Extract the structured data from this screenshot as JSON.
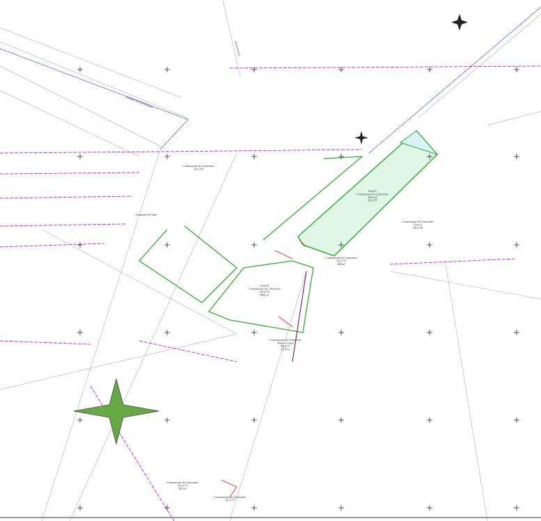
{
  "labels": [
    {
      "lines": [
        "Limite de Commune"
      ]
    },
    {
      "lines": [
        "Zone A",
        "Communauté de Communes",
        "5422 m²",
        "ZE n°97"
      ]
    },
    {
      "lines": [
        "Communauté de Communes",
        "Zone B",
        "ZE n°98"
      ]
    },
    {
      "lines": [
        "Zone B",
        "Communauté de Communes",
        "ZE n°76",
        "4880 m²"
      ]
    },
    {
      "lines": [
        "Communauté de Communes",
        "Maître Lesieur",
        "ZE n°77",
        "2154 m²"
      ]
    },
    {
      "lines": [
        "Communauté de Communes",
        "ZE n°79",
        "268 m²"
      ]
    },
    {
      "lines": [
        "Communauté de Communes",
        "ZE n°74",
        "287 m²"
      ]
    },
    {
      "lines": [
        "Communauté de Communes",
        "ZE n°75"
      ]
    },
    {
      "lines": [
        "Communauté de Communes",
        "ZE n°60"
      ]
    },
    {
      "lines": [
        "Chemin Rural"
      ]
    },
    {
      "lines": [
        "Commune de Saint"
      ]
    }
  ]
}
